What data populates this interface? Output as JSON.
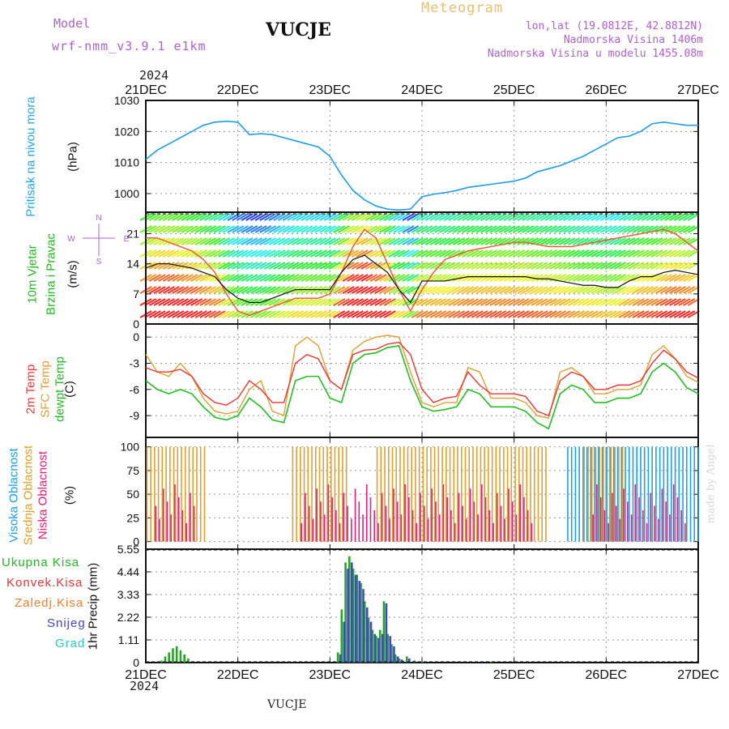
{
  "header": {
    "model_label": "Model",
    "model_name": "wrf-nmm_v3.9.1 e1km",
    "station": "VUCJE",
    "meteogram_label": "Meteogram",
    "lonlat": "lon,lat (19.0812E, 42.8812N)",
    "altitude": "Nadmorska Visina 1406m",
    "model_altitude": "Nadmorska Visina u modelu 1455.08m",
    "credit": "made by Angel",
    "year_top": "2024",
    "year_bottom": "2024",
    "footer_station": "VUCJE"
  },
  "colors": {
    "pressure": "#1e9ee6",
    "temp2m": "#ee3333",
    "sfc_temp": "#e0a030",
    "dewpoint": "#22c022",
    "high_cloud": "#1ea0e8",
    "mid_cloud": "#e0a030",
    "low_cloud": "#e0207a",
    "total_precip": "#22a822",
    "convective": "#ee3333",
    "freezing": "#f08030",
    "snow": "#4444cc",
    "hail": "#22cccc",
    "wind_speed": "#111111",
    "wind_gust": "#ee5533"
  },
  "chart_data": [
    {
      "type": "line",
      "panel": "pressure",
      "ylabel_left": "Pritisak na nivou mora",
      "ylabel_unit": "(hPa)",
      "x_ticks": [
        "21DEC",
        "22DEC",
        "23DEC",
        "24DEC",
        "25DEC",
        "26DEC",
        "27DEC"
      ],
      "x_range_hours": [
        0,
        144
      ],
      "ylim": [
        994,
        1030
      ],
      "y_ticks": [
        1000,
        1010,
        1020,
        1030
      ],
      "grid": true,
      "series": [
        {
          "x": [
            0,
            3,
            6,
            9,
            12,
            15,
            18,
            21,
            24,
            27,
            30,
            33,
            36,
            39,
            42,
            45,
            48,
            51,
            54,
            57,
            60,
            63,
            66,
            69,
            72,
            75,
            78,
            81,
            84,
            87,
            90,
            93,
            96,
            99,
            102,
            105,
            108,
            111,
            114,
            117,
            120,
            123,
            126,
            129,
            132,
            135,
            138,
            141,
            144
          ],
          "y": [
            1011,
            1014,
            1016,
            1018,
            1020,
            1022,
            1023,
            1023.3,
            1023,
            1019,
            1019.3,
            1019,
            1018,
            1017,
            1016,
            1015,
            1012,
            1006,
            1001,
            998,
            996,
            995,
            994.7,
            995,
            999,
            999.8,
            1000.3,
            1001,
            1002,
            1002.5,
            1003,
            1003.5,
            1004,
            1005,
            1007,
            1008,
            1009,
            1010.5,
            1012,
            1014,
            1016,
            1018,
            1018.5,
            1020,
            1022.5,
            1023,
            1022.5,
            1022,
            1022
          ]
        }
      ]
    },
    {
      "type": "line",
      "panel": "wind",
      "ylabel_left": "10m Vjetar",
      "ylabel_left2": "Brzina i Pravac",
      "ylabel_unit": "(m/s)",
      "ylim": [
        0,
        26
      ],
      "y_ticks": [
        0,
        7,
        14,
        21
      ],
      "grid": true,
      "compass": [
        "N",
        "W",
        "E",
        "S"
      ],
      "series": [
        {
          "name": "wind speed",
          "x": [
            0,
            3,
            6,
            9,
            12,
            15,
            18,
            21,
            24,
            27,
            30,
            33,
            36,
            39,
            42,
            45,
            48,
            51,
            54,
            57,
            60,
            63,
            66,
            69,
            72,
            75,
            78,
            81,
            84,
            87,
            90,
            93,
            96,
            99,
            102,
            105,
            108,
            111,
            114,
            117,
            120,
            123,
            126,
            129,
            132,
            135,
            138,
            141,
            144
          ],
          "y": [
            13,
            14,
            14,
            13.5,
            13,
            12,
            11,
            8,
            6,
            5,
            5,
            6,
            7,
            8,
            8,
            8,
            8,
            12,
            15,
            16,
            14,
            12,
            8,
            5,
            10,
            10,
            10,
            10.5,
            11,
            11,
            11,
            11,
            11,
            11,
            10.5,
            10.5,
            10,
            9.5,
            9,
            9,
            8.5,
            8.5,
            10,
            11,
            11,
            12,
            12.5,
            12,
            11.5
          ]
        },
        {
          "name": "wind gust",
          "x": [
            0,
            3,
            6,
            9,
            12,
            15,
            18,
            21,
            24,
            27,
            30,
            33,
            36,
            39,
            42,
            45,
            48,
            51,
            54,
            57,
            60,
            63,
            66,
            69,
            72,
            75,
            78,
            81,
            84,
            87,
            90,
            93,
            96,
            99,
            102,
            105,
            108,
            111,
            114,
            117,
            120,
            123,
            126,
            129,
            132,
            135,
            138,
            141,
            144
          ],
          "y": [
            20,
            20,
            19,
            18,
            17,
            15,
            12,
            7,
            3,
            2,
            3,
            4,
            5,
            6,
            6,
            6,
            7,
            12,
            18,
            22,
            20,
            14,
            8,
            3,
            8,
            12,
            15,
            16,
            17,
            17.5,
            18,
            18.5,
            19,
            19,
            18.5,
            18,
            18,
            18,
            18.5,
            19,
            19.5,
            20,
            20.5,
            21,
            21.5,
            22,
            21,
            19,
            17
          ]
        }
      ]
    },
    {
      "type": "line",
      "panel": "temperature",
      "ylabel_2m": "2m Temp",
      "ylabel_sfc": "SFC Temp",
      "ylabel_dew": "dewpt Temp",
      "ylabel_unit": "(C)",
      "ylim": [
        -11.5,
        1.5
      ],
      "y_ticks": [
        0,
        -3,
        -6,
        -9
      ],
      "grid": true,
      "series": [
        {
          "name": "2m Temp",
          "x": [
            0,
            3,
            6,
            9,
            12,
            15,
            18,
            21,
            24,
            27,
            30,
            33,
            36,
            39,
            42,
            45,
            48,
            51,
            54,
            57,
            60,
            63,
            66,
            69,
            72,
            75,
            78,
            81,
            84,
            87,
            90,
            93,
            96,
            99,
            102,
            105,
            108,
            111,
            114,
            117,
            120,
            123,
            126,
            129,
            132,
            135,
            138,
            141,
            144
          ],
          "y": [
            -3.5,
            -4,
            -4,
            -3.7,
            -4.5,
            -6.5,
            -7.5,
            -7.8,
            -7,
            -5,
            -6,
            -7.5,
            -7.5,
            -3,
            -2,
            -2.5,
            -5,
            -6,
            -2,
            -1.5,
            -1.4,
            -0.8,
            -0.6,
            -2,
            -6,
            -7.5,
            -7,
            -6.8,
            -4,
            -5.5,
            -6.5,
            -6.5,
            -6.5,
            -6.8,
            -8.5,
            -9,
            -5,
            -4,
            -4.5,
            -6,
            -6,
            -5.5,
            -5.5,
            -5,
            -3,
            -1.5,
            -2.5,
            -4,
            -4.7
          ]
        },
        {
          "name": "SFC Temp",
          "x": [
            0,
            3,
            6,
            9,
            12,
            15,
            18,
            21,
            24,
            27,
            30,
            33,
            36,
            39,
            42,
            45,
            48,
            51,
            54,
            57,
            60,
            63,
            66,
            69,
            72,
            75,
            78,
            81,
            84,
            87,
            90,
            93,
            96,
            99,
            102,
            105,
            108,
            111,
            114,
            117,
            120,
            123,
            126,
            129,
            132,
            135,
            138,
            141,
            144
          ],
          "y": [
            -2,
            -4,
            -4.5,
            -3,
            -4.5,
            -7,
            -8.5,
            -8.8,
            -8.5,
            -6,
            -5,
            -8.5,
            -9,
            -1,
            0,
            -1,
            -5,
            -6,
            -1.5,
            -0.5,
            0,
            0.2,
            0,
            -4,
            -7.5,
            -8,
            -7.5,
            -7.5,
            -3.5,
            -4,
            -7,
            -7,
            -7,
            -7.5,
            -9,
            -9.3,
            -4,
            -3.5,
            -4.5,
            -6.5,
            -6.5,
            -6,
            -6,
            -5.5,
            -2,
            -1,
            -2.5,
            -4.5,
            -5.2
          ]
        },
        {
          "name": "dewpt Temp",
          "x": [
            0,
            3,
            6,
            9,
            12,
            15,
            18,
            21,
            24,
            27,
            30,
            33,
            36,
            39,
            42,
            45,
            48,
            51,
            54,
            57,
            60,
            63,
            66,
            69,
            72,
            75,
            78,
            81,
            84,
            87,
            90,
            93,
            96,
            99,
            102,
            105,
            108,
            111,
            114,
            117,
            120,
            123,
            126,
            129,
            132,
            135,
            138,
            141,
            144
          ],
          "y": [
            -5,
            -6,
            -6.5,
            -6,
            -6.5,
            -8,
            -9.2,
            -9.5,
            -9,
            -7,
            -8,
            -9.5,
            -9.8,
            -5,
            -4.5,
            -4.5,
            -7,
            -7.5,
            -3,
            -2,
            -1.8,
            -1.2,
            -1,
            -5,
            -8,
            -8.5,
            -8.3,
            -8,
            -6,
            -6.5,
            -8,
            -8,
            -8,
            -8.5,
            -9.8,
            -10.5,
            -6.5,
            -5.5,
            -6,
            -7.5,
            -7.5,
            -7,
            -7,
            -6.5,
            -4,
            -3,
            -4,
            -5.8,
            -6.5
          ]
        }
      ]
    },
    {
      "type": "bar",
      "panel": "clouds",
      "ylabel_high": "Visoka Oblacnost",
      "ylabel_mid": "Srednja Oblacnost",
      "ylabel_low": "Niska Oblacnost",
      "ylabel_unit": "(%)",
      "ylim": [
        0,
        100
      ],
      "y_ticks": [
        0,
        25,
        50,
        75,
        100
      ],
      "grid": true,
      "series": [
        {
          "name": "Visoka Oblacnost",
          "x_range": [
            [
              110,
              144
            ]
          ],
          "value": 100
        },
        {
          "name": "Srednja Oblacnost",
          "x_range": [
            [
              0,
              15
            ],
            [
              38,
              52
            ],
            [
              60,
              104
            ],
            [
              114,
              124
            ]
          ],
          "value": 100
        },
        {
          "name": "Niska Oblacnost",
          "x_range": [
            [
              2,
              12
            ],
            [
              40,
              100
            ],
            [
              116,
              140
            ]
          ],
          "value": 65
        }
      ]
    },
    {
      "type": "bar",
      "panel": "precipitation",
      "ylabel_unit": "1hr Precip (mm)",
      "ylim": [
        0,
        5.55
      ],
      "y_ticks": [
        0,
        1.11,
        2.22,
        3.33,
        4.44,
        5.55
      ],
      "grid": true,
      "series": [
        {
          "name": "Ukupna Kisa",
          "x": [
            4,
            5,
            6,
            7,
            8,
            9,
            10,
            11,
            50,
            51,
            52,
            53,
            54,
            55,
            56,
            57,
            58,
            59,
            60,
            61,
            62,
            63,
            64,
            65,
            66,
            67,
            68,
            70,
            72,
            90
          ],
          "y": [
            0.1,
            0.3,
            0.5,
            0.7,
            0.8,
            0.6,
            0.4,
            0.2,
            0.5,
            2.6,
            4.9,
            5.2,
            4.6,
            4.3,
            3.9,
            3.0,
            2.2,
            1.6,
            1.3,
            1.6,
            3.0,
            1.4,
            0.9,
            0.4,
            0.2,
            0.1,
            0.3,
            0.1,
            0.05,
            0.05
          ]
        },
        {
          "name": "Konvek.Kisa",
          "x": [],
          "y": []
        },
        {
          "name": "Zaledj.Kisa",
          "x": [],
          "y": []
        },
        {
          "name": "Snijeg",
          "x": [
            50,
            51,
            52,
            53,
            54,
            55,
            56,
            57,
            58,
            59,
            60,
            61,
            62,
            63,
            64,
            65,
            66,
            68
          ],
          "y": [
            0.4,
            2.0,
            4.6,
            4.9,
            4.3,
            4.0,
            3.6,
            2.7,
            2.0,
            1.4,
            1.2,
            1.4,
            2.9,
            1.3,
            0.8,
            0.3,
            0.15,
            0.2
          ]
        },
        {
          "name": "Grad",
          "x": [],
          "y": []
        }
      ]
    }
  ],
  "legend_precip": [
    "Ukupna Kisa",
    "Konvek.Kisa",
    "Zaledj.Kisa",
    "Snijeg",
    "Grad"
  ]
}
